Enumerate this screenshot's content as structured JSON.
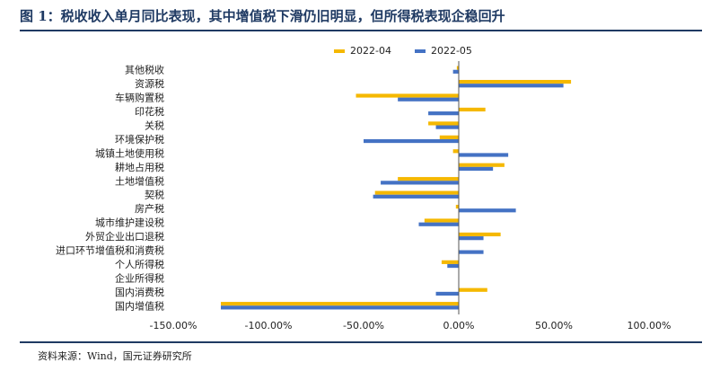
{
  "title": "图 1：税收收入单月同比表现，其中增值税下滑仍旧明显，但所得税表现企稳回升",
  "source": "资料来源：Wind，国元证券研究所",
  "chart_data": {
    "type": "bar",
    "orientation": "horizontal",
    "categories": [
      "其他税收",
      "资源税",
      "车辆购置税",
      "印花税",
      "关税",
      "环境保护税",
      "城镇土地使用税",
      "耕地占用税",
      "土地增值税",
      "契税",
      "房产税",
      "城市维护建设税",
      "外贸企业出口退税",
      "进口环节增值税和消费税",
      "个人所得税",
      "企业所得税",
      "国内消费税",
      "国内增值税"
    ],
    "series": [
      {
        "name": "2022-04",
        "color": "#f5b800",
        "values": [
          -1.0,
          59.0,
          -54.0,
          14.0,
          -16.0,
          -10.0,
          -3.0,
          24.0,
          -32.0,
          -44.0,
          -1.5,
          -18.0,
          22.0,
          0,
          -9.0,
          0,
          15.0,
          -125.0
        ]
      },
      {
        "name": "2022-05",
        "color": "#4472c4",
        "values": [
          -3.0,
          55.0,
          -32.0,
          -16.0,
          -12.0,
          -50.0,
          26.0,
          18.0,
          -41.0,
          -45.0,
          30.0,
          -21.0,
          13.0,
          13.0,
          -6.0,
          0,
          -12.0,
          -125.0
        ]
      }
    ],
    "xlim": [
      -150,
      100
    ],
    "xticks": [
      "-150.00%",
      "-100.00%",
      "-50.00%",
      "0.00%",
      "50.00%",
      "100.00%"
    ],
    "xtick_values": [
      -150,
      -100,
      -50,
      0,
      50,
      100
    ],
    "unit": "%",
    "legend_position": "top",
    "grid": false
  }
}
